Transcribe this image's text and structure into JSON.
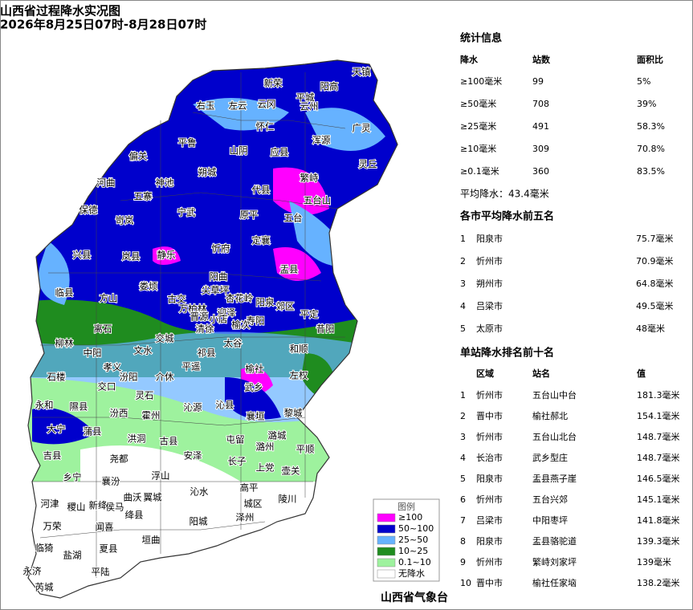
{
  "header": {
    "title": "山西省过程降水实况图",
    "subtitle": "2026年8月25日07时-8月28日07时"
  },
  "map": {
    "counties": [
      "天镇",
      "阳高",
      "新荣",
      "平城",
      "左云",
      "云冈",
      "云州",
      "右玉",
      "怀仁",
      "广灵",
      "浑源",
      "山阴",
      "应县",
      "平鲁",
      "偏关",
      "朔城",
      "灵丘",
      "繁峙",
      "河曲",
      "神池",
      "五寨",
      "宁武",
      "原平",
      "代县",
      "五台山",
      "五台",
      "保德",
      "岢岚",
      "忻府",
      "定襄",
      "兴县",
      "岚县",
      "静乐",
      "盂县",
      "阳曲",
      "娄烦",
      "临县",
      "古交",
      "方山",
      "尖草坪",
      "万柏林",
      "迎泽",
      "杏花岭",
      "小店",
      "晋源",
      "阳泉",
      "郊区",
      "平定",
      "寿阳",
      "榆次",
      "清徐",
      "昔阳",
      "离石",
      "柳林",
      "中阳",
      "交城",
      "太谷",
      "文水",
      "祁县",
      "和顺",
      "孝义",
      "汾阳",
      "平遥",
      "榆社",
      "左权",
      "石楼",
      "交口",
      "介休",
      "武乡",
      "永和",
      "隰县",
      "灵石",
      "沁县",
      "襄垣",
      "黎城",
      "汾西",
      "霍州",
      "沁源",
      "大宁",
      "蒲县",
      "洪洞",
      "古县",
      "屯留",
      "潞州",
      "潞城",
      "平顺",
      "吉县",
      "尧都",
      "安泽",
      "长子",
      "上党",
      "壶关",
      "乡宁",
      "襄汾",
      "浮山",
      "沁水",
      "高平",
      "陵川",
      "河津",
      "稷山",
      "新绛",
      "侯马",
      "曲沃",
      "翼城",
      "绛县",
      "城区",
      "泽州",
      "阳城",
      "万荣",
      "闻喜",
      "临猗",
      "盐湖",
      "夏县",
      "垣曲",
      "永济",
      "平陆",
      "芮城"
    ],
    "legend": {
      "title": "图例",
      "items": [
        {
          "label": "≥100",
          "color": "#ff00ff"
        },
        {
          "label": "50~100",
          "color": "#0000cc"
        },
        {
          "label": "25~50",
          "color": "#66b2ff"
        },
        {
          "label": "10~25",
          "color": "#1f8c1f"
        },
        {
          "label": "0.1~10",
          "color": "#9ef29e"
        },
        {
          "label": "无降水",
          "color": "#ffffff"
        }
      ]
    },
    "footer": "山西省气象台"
  },
  "stats": {
    "title": "统计信息",
    "columns": [
      "降水",
      "站数",
      "面积比"
    ],
    "rows": [
      [
        "≥100毫米",
        "99",
        "5%"
      ],
      [
        "≥50毫米",
        "708",
        "39%"
      ],
      [
        "≥25毫米",
        "491",
        "58.3%"
      ],
      [
        "≥10毫米",
        "309",
        "70.8%"
      ],
      [
        "≥0.1毫米",
        "360",
        "83.5%"
      ]
    ],
    "average": "平均降水：43.4毫米"
  },
  "cities": {
    "title": "各市平均降水前五名",
    "rows": [
      [
        "1",
        "阳泉市",
        "75.7毫米"
      ],
      [
        "2",
        "忻州市",
        "70.9毫米"
      ],
      [
        "3",
        "朔州市",
        "64.8毫米"
      ],
      [
        "4",
        "吕梁市",
        "49.5毫米"
      ],
      [
        "5",
        "太原市",
        "48毫米"
      ]
    ]
  },
  "stations": {
    "title": "单站降水排名前十名",
    "columns": [
      "区域",
      "站名",
      "值"
    ],
    "rows": [
      [
        "1",
        "忻州市",
        "五台山中台",
        "181.3毫米"
      ],
      [
        "2",
        "晋中市",
        "榆社郝北",
        "154.1毫米"
      ],
      [
        "3",
        "忻州市",
        "五台山北台",
        "148.7毫米"
      ],
      [
        "4",
        "长治市",
        "武乡型庄",
        "148.7毫米"
      ],
      [
        "5",
        "阳泉市",
        "盂县燕子崖",
        "146.5毫米"
      ],
      [
        "6",
        "忻州市",
        "五台兴郊",
        "145.1毫米"
      ],
      [
        "7",
        "吕梁市",
        "中阳枣坪",
        "141.8毫米"
      ],
      [
        "8",
        "阳泉市",
        "盂县骆驼道",
        "139.3毫米"
      ],
      [
        "9",
        "忻州市",
        "繁峙刘家坪",
        "139毫米"
      ],
      [
        "10",
        "晋中市",
        "榆社任家垴",
        "138.2毫米"
      ]
    ]
  }
}
